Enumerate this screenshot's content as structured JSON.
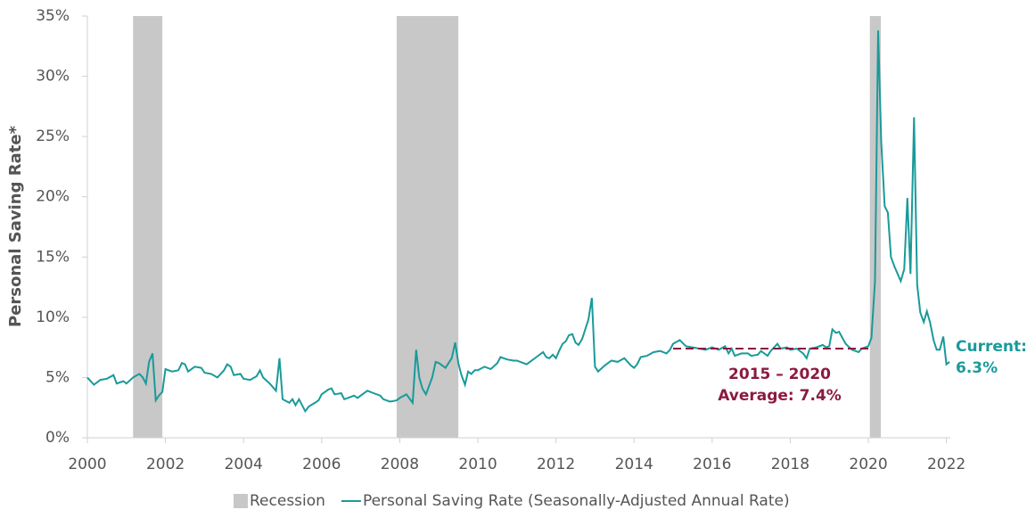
{
  "chart_data": {
    "type": "line",
    "y_label": "Personal Saving Rate*",
    "xlim": [
      2000,
      2022.1
    ],
    "xticks": [
      2000,
      2002,
      2004,
      2006,
      2008,
      2010,
      2012,
      2014,
      2016,
      2018,
      2020,
      2022
    ],
    "ylim": [
      0,
      35
    ],
    "yticks": [
      {
        "value": 0,
        "label": "0%"
      },
      {
        "value": 5,
        "label": "5%"
      },
      {
        "value": 10,
        "label": "10%"
      },
      {
        "value": 15,
        "label": "15%"
      },
      {
        "value": 20,
        "label": "20%"
      },
      {
        "value": 25,
        "label": "25%"
      },
      {
        "value": 30,
        "label": "30%"
      },
      {
        "value": 35,
        "label": "35%"
      }
    ],
    "grid": false,
    "recessions": {
      "name": "Recession",
      "color": "#c8c8c8",
      "ranges": [
        [
          2001.17,
          2001.92
        ],
        [
          2007.92,
          2009.5
        ],
        [
          2020.04,
          2020.32
        ]
      ]
    },
    "x": [
      2000.0,
      2000.17,
      2000.33,
      2000.5,
      2000.67,
      2000.75,
      2000.92,
      2001.0,
      2001.17,
      2001.33,
      2001.42,
      2001.5,
      2001.58,
      2001.67,
      2001.75,
      2001.83,
      2001.92,
      2002.0,
      2002.17,
      2002.33,
      2002.42,
      2002.5,
      2002.58,
      2002.75,
      2002.92,
      2003.0,
      2003.17,
      2003.33,
      2003.5,
      2003.58,
      2003.67,
      2003.75,
      2003.92,
      2004.0,
      2004.17,
      2004.33,
      2004.42,
      2004.5,
      2004.67,
      2004.83,
      2004.92,
      2005.0,
      2005.17,
      2005.25,
      2005.33,
      2005.42,
      2005.58,
      2005.67,
      2005.83,
      2005.92,
      2006.0,
      2006.17,
      2006.25,
      2006.33,
      2006.5,
      2006.58,
      2006.75,
      2006.83,
      2006.92,
      2007.0,
      2007.17,
      2007.33,
      2007.5,
      2007.58,
      2007.75,
      2007.92,
      2008.0,
      2008.17,
      2008.33,
      2008.42,
      2008.5,
      2008.58,
      2008.67,
      2008.83,
      2008.92,
      2009.0,
      2009.17,
      2009.33,
      2009.42,
      2009.5,
      2009.58,
      2009.67,
      2009.75,
      2009.83,
      2009.92,
      2010.0,
      2010.17,
      2010.33,
      2010.5,
      2010.58,
      2010.75,
      2010.92,
      2011.0,
      2011.25,
      2011.5,
      2011.67,
      2011.75,
      2011.83,
      2011.92,
      2012.0,
      2012.08,
      2012.17,
      2012.25,
      2012.33,
      2012.42,
      2012.5,
      2012.58,
      2012.67,
      2012.75,
      2012.83,
      2012.92,
      2013.0,
      2013.08,
      2013.25,
      2013.42,
      2013.58,
      2013.75,
      2013.92,
      2014.0,
      2014.08,
      2014.17,
      2014.33,
      2014.5,
      2014.67,
      2014.83,
      2014.92,
      2015.0,
      2015.17,
      2015.33,
      2015.5,
      2015.67,
      2015.83,
      2016.0,
      2016.17,
      2016.33,
      2016.42,
      2016.5,
      2016.58,
      2016.75,
      2016.92,
      2017.0,
      2017.17,
      2017.25,
      2017.42,
      2017.5,
      2017.67,
      2017.75,
      2017.92,
      2018.0,
      2018.17,
      2018.33,
      2018.42,
      2018.5,
      2018.67,
      2018.83,
      2018.92,
      2019.0,
      2019.08,
      2019.17,
      2019.25,
      2019.42,
      2019.58,
      2019.75,
      2019.83,
      2020.0,
      2020.08,
      2020.17,
      2020.25,
      2020.33,
      2020.42,
      2020.5,
      2020.58,
      2020.67,
      2020.83,
      2020.92,
      2021.0,
      2021.08,
      2021.17,
      2021.25,
      2021.33,
      2021.42,
      2021.5,
      2021.58,
      2021.67,
      2021.75,
      2021.83,
      2021.92,
      2022.0,
      2022.08
    ],
    "series": [
      {
        "name": "Personal Saving Rate (Seasonally-Adjusted Annual Rate)",
        "color": "#1a9a9a",
        "values": [
          5.0,
          4.4,
          4.8,
          4.9,
          5.2,
          4.5,
          4.7,
          4.5,
          5.0,
          5.3,
          5.0,
          4.5,
          6.3,
          7.0,
          3.1,
          3.5,
          3.8,
          5.7,
          5.5,
          5.6,
          6.2,
          6.1,
          5.5,
          5.9,
          5.8,
          5.4,
          5.3,
          5.0,
          5.6,
          6.1,
          5.9,
          5.2,
          5.3,
          4.9,
          4.8,
          5.1,
          5.6,
          5.0,
          4.5,
          3.9,
          6.6,
          3.2,
          2.9,
          3.2,
          2.7,
          3.2,
          2.2,
          2.6,
          2.9,
          3.1,
          3.6,
          4.0,
          4.1,
          3.6,
          3.7,
          3.2,
          3.4,
          3.5,
          3.3,
          3.5,
          3.9,
          3.7,
          3.5,
          3.2,
          3.0,
          3.1,
          3.3,
          3.6,
          2.9,
          7.3,
          5.0,
          4.1,
          3.6,
          5.0,
          6.3,
          6.2,
          5.8,
          6.6,
          7.9,
          6.2,
          5.2,
          4.4,
          5.5,
          5.3,
          5.6,
          5.6,
          5.9,
          5.7,
          6.2,
          6.7,
          6.5,
          6.4,
          6.4,
          6.1,
          6.7,
          7.1,
          6.7,
          6.6,
          6.9,
          6.6,
          7.2,
          7.8,
          8.0,
          8.5,
          8.6,
          7.9,
          7.7,
          8.2,
          9.0,
          9.8,
          11.6,
          5.9,
          5.5,
          6.0,
          6.4,
          6.3,
          6.6,
          6.0,
          5.8,
          6.1,
          6.7,
          6.8,
          7.1,
          7.2,
          7.0,
          7.3,
          7.8,
          8.1,
          7.6,
          7.5,
          7.4,
          7.3,
          7.5,
          7.3,
          7.6,
          7.0,
          7.4,
          6.8,
          7.0,
          7.0,
          6.8,
          6.9,
          7.2,
          6.8,
          7.2,
          7.8,
          7.4,
          7.5,
          7.3,
          7.4,
          7.0,
          6.6,
          7.4,
          7.5,
          7.7,
          7.5,
          7.6,
          9.0,
          8.7,
          8.8,
          7.8,
          7.3,
          7.1,
          7.4,
          7.6,
          8.3,
          13.0,
          33.8,
          24.5,
          19.2,
          18.7,
          15.0,
          14.2,
          13.0,
          14.0,
          19.9,
          13.6,
          26.6,
          12.7,
          10.4,
          9.6,
          10.5,
          9.6,
          8.1,
          7.3,
          7.3,
          8.4,
          6.1,
          6.3
        ]
      }
    ],
    "average": {
      "value": 7.4,
      "x": [
        2015,
        2020
      ],
      "color": "#8b1a3f",
      "lines": [
        "2015 – 2020",
        "Average: 7.4%"
      ]
    },
    "current": {
      "lines": [
        "Current:",
        "6.3%"
      ]
    }
  }
}
